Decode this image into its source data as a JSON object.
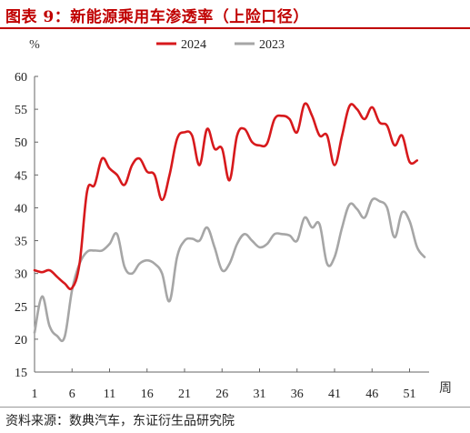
{
  "title": "图表 9：新能源乘用车渗透率（上险口径）",
  "source": "资料来源：数典汽车，东证衍生品研究院",
  "chart_data": {
    "type": "line",
    "ylabel": "%",
    "xlabel": "周",
    "ylim": [
      15,
      60
    ],
    "yticks": [
      15,
      20,
      25,
      30,
      35,
      40,
      45,
      50,
      55,
      60
    ],
    "xlim": [
      1,
      53
    ],
    "xticks": [
      1,
      6,
      11,
      16,
      21,
      26,
      31,
      36,
      41,
      46,
      51
    ],
    "legend": "top-center",
    "grid": false,
    "series": [
      {
        "name": "2024",
        "color": "#d7191c",
        "x": [
          1,
          2,
          3,
          4,
          5,
          6,
          7,
          8,
          9,
          10,
          11,
          12,
          13,
          14,
          15,
          16,
          17,
          18,
          19,
          20,
          21,
          22,
          23,
          24,
          25,
          26,
          27,
          28,
          29,
          30,
          31,
          32,
          33,
          34,
          35,
          36,
          37,
          38,
          39,
          40,
          41,
          42,
          43,
          44,
          45,
          46,
          47,
          48,
          49,
          50,
          51,
          52
        ],
        "values": [
          30.5,
          30.2,
          30.5,
          29.5,
          28.5,
          27.8,
          31.5,
          42.5,
          43.5,
          47.5,
          46.0,
          45.0,
          43.5,
          46.5,
          47.5,
          45.5,
          45.0,
          41.2,
          45.0,
          50.5,
          51.5,
          51.0,
          46.5,
          52.0,
          49.0,
          49.0,
          44.2,
          51.0,
          52.0,
          50.0,
          49.5,
          49.8,
          53.5,
          54.0,
          53.5,
          51.5,
          55.8,
          54.0,
          51.0,
          51.0,
          46.5,
          51.0,
          55.5,
          55.0,
          53.5,
          55.3,
          53.0,
          52.5,
          49.5,
          51.0,
          47.0,
          47.2
        ]
      },
      {
        "name": "2023",
        "color": "#a6a6a6",
        "x": [
          1,
          2,
          3,
          4,
          5,
          6,
          7,
          8,
          9,
          10,
          11,
          12,
          13,
          14,
          15,
          16,
          17,
          18,
          19,
          20,
          21,
          22,
          23,
          24,
          25,
          26,
          27,
          28,
          29,
          30,
          31,
          32,
          33,
          34,
          35,
          36,
          37,
          38,
          39,
          40,
          41,
          42,
          43,
          44,
          45,
          46,
          47,
          48,
          49,
          50,
          51,
          52,
          53
        ],
        "values": [
          21.0,
          26.5,
          22.0,
          20.5,
          20.3,
          27.5,
          31.5,
          33.3,
          33.5,
          33.5,
          34.5,
          36.0,
          31.0,
          30.0,
          31.5,
          32.0,
          31.5,
          30.0,
          25.8,
          32.5,
          35.0,
          35.3,
          35.0,
          37.0,
          34.0,
          30.5,
          31.5,
          34.5,
          36.0,
          35.0,
          34.0,
          34.5,
          36.0,
          36.0,
          35.8,
          35.0,
          38.5,
          37.0,
          37.5,
          31.5,
          32.5,
          37.0,
          40.5,
          39.8,
          38.5,
          41.2,
          41.0,
          40.0,
          35.5,
          39.3,
          38.0,
          34.0,
          32.5
        ]
      }
    ]
  }
}
